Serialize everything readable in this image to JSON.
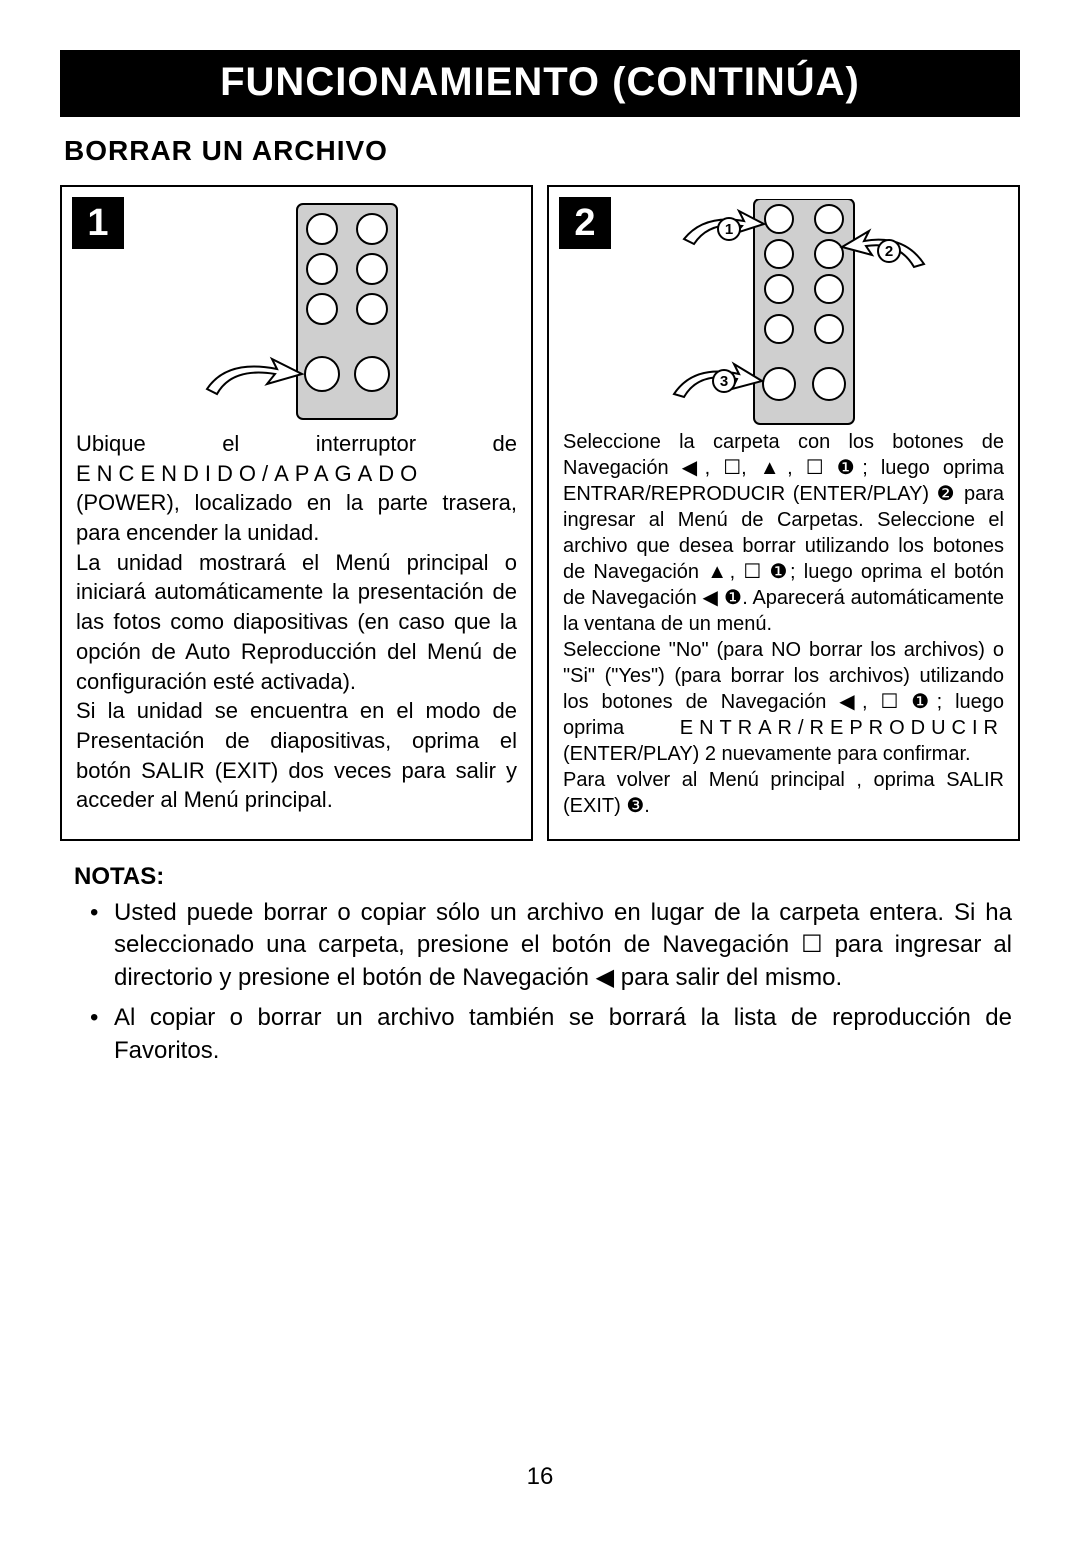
{
  "title": "FUNCIONAMIENTO (CONTINÚA)",
  "subtitle": "BORRAR UN ARCHIVO",
  "panel1": {
    "step_number": "1",
    "text_html": "Ubique el interruptor de <span class='sp'>ENCENDIDO/APAGADO</span> (POWER), localizado en la parte trasera, para encender la unidad.<br>La unidad mostrará el Menú principal o iniciará automáticamente la presentación de las fotos como diapositivas (en caso que la opción de Auto Reproducción del Menú de configuración esté activada).<br>Si la unidad se encuentra en el modo de Presentación de diapositivas, oprima el botón SALIR (EXIT) dos veces para salir y acceder al Menú principal."
  },
  "panel2": {
    "step_number": "2",
    "text_html": "Seleccione la carpeta con los botones de Navegación ◀, ☐, ▲, ☐ ❶; luego oprima ENTRAR/REPRODUCIR (ENTER/PLAY) ❷ para ingresar al Menú de Carpetas. Seleccione el archivo que desea borrar utilizando los botones de Navegación ▲, ☐ ❶; luego oprima el botón de Navegación ◀ ❶. Aparecerá automáticamente la ventana de un menú.<br>Seleccione \"No\" (para NO borrar los archivos) o \"Si\" (\"Yes\") (para borrar los archivos) utilizando los botones de Navegación ◀, ☐ ❶; luego oprima <span class='sp'>ENTRAR/REPRODUCIR</span> (ENTER/PLAY) 2 nuevamente para confirmar.<br>Para volver al Menú principal , oprima SALIR (EXIT) ❸."
  },
  "notes": {
    "heading": "NOTAS:",
    "items": [
      "Usted puede borrar o copiar sólo un archivo en lugar de la carpeta entera. Si ha seleccionado una carpeta, presione el botón de Navegación ☐ para ingresar al directorio y presione el botón de Navegación ◀ para salir del mismo.",
      "Al copiar o borrar un archivo también se borrará la lista de reproducción de Favoritos."
    ]
  },
  "page_number": "16",
  "callouts": {
    "c1": "1",
    "c2": "2",
    "c3": "3"
  }
}
